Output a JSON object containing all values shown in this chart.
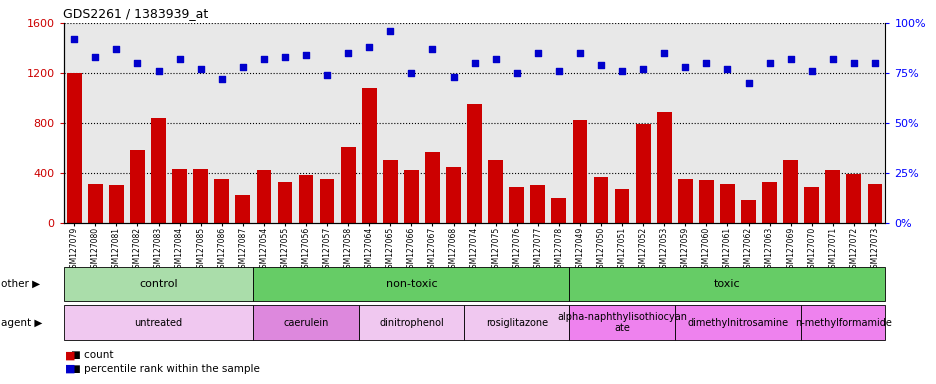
{
  "title": "GDS2261 / 1383939_at",
  "sample_ids": [
    "GSM127079",
    "GSM127080",
    "GSM127081",
    "GSM127082",
    "GSM127083",
    "GSM127084",
    "GSM127085",
    "GSM127086",
    "GSM127087",
    "GSM127054",
    "GSM127055",
    "GSM127056",
    "GSM127057",
    "GSM127058",
    "GSM127064",
    "GSM127065",
    "GSM127066",
    "GSM127067",
    "GSM127068",
    "GSM127074",
    "GSM127075",
    "GSM127076",
    "GSM127077",
    "GSM127078",
    "GSM127049",
    "GSM127050",
    "GSM127051",
    "GSM127052",
    "GSM127053",
    "GSM127059",
    "GSM127060",
    "GSM127061",
    "GSM127062",
    "GSM127063",
    "GSM127069",
    "GSM127070",
    "GSM127071",
    "GSM127072",
    "GSM127073"
  ],
  "counts": [
    1200,
    310,
    300,
    580,
    840,
    430,
    430,
    350,
    220,
    420,
    330,
    380,
    350,
    610,
    1080,
    500,
    420,
    570,
    450,
    950,
    500,
    290,
    300,
    200,
    820,
    370,
    270,
    790,
    890,
    350,
    340,
    310,
    180,
    330,
    500,
    290,
    420,
    390,
    310
  ],
  "percentile_ranks": [
    92,
    83,
    87,
    80,
    76,
    82,
    77,
    72,
    78,
    82,
    83,
    84,
    74,
    85,
    88,
    96,
    75,
    87,
    73,
    80,
    82,
    75,
    85,
    76,
    85,
    79,
    76,
    77,
    85,
    78,
    80,
    77,
    70,
    80,
    82,
    76,
    82,
    80,
    80
  ],
  "ylim_left": [
    0,
    1600
  ],
  "ylim_right": [
    0,
    100
  ],
  "yticks_left": [
    0,
    400,
    800,
    1200,
    1600
  ],
  "yticks_right": [
    0,
    25,
    50,
    75,
    100
  ],
  "bar_color": "#cc0000",
  "dot_color": "#0000cc",
  "plot_bg": "#e8e8e8",
  "other_groups": [
    {
      "label": "control",
      "start": 0,
      "end": 9,
      "color": "#aaddaa"
    },
    {
      "label": "non-toxic",
      "start": 9,
      "end": 24,
      "color": "#66cc66"
    },
    {
      "label": "toxic",
      "start": 24,
      "end": 39,
      "color": "#66cc66"
    }
  ],
  "agent_groups": [
    {
      "label": "untreated",
      "start": 0,
      "end": 9,
      "color": "#f0c8f0"
    },
    {
      "label": "caerulein",
      "start": 9,
      "end": 14,
      "color": "#dd88dd"
    },
    {
      "label": "dinitrophenol",
      "start": 14,
      "end": 19,
      "color": "#f0c8f0"
    },
    {
      "label": "rosiglitazone",
      "start": 19,
      "end": 24,
      "color": "#f0c8f0"
    },
    {
      "label": "alpha-naphthylisothiocyan\nate",
      "start": 24,
      "end": 29,
      "color": "#ee82ee"
    },
    {
      "label": "dimethylnitrosamine",
      "start": 29,
      "end": 35,
      "color": "#ee82ee"
    },
    {
      "label": "n-methylformamide",
      "start": 35,
      "end": 39,
      "color": "#ee82ee"
    }
  ]
}
